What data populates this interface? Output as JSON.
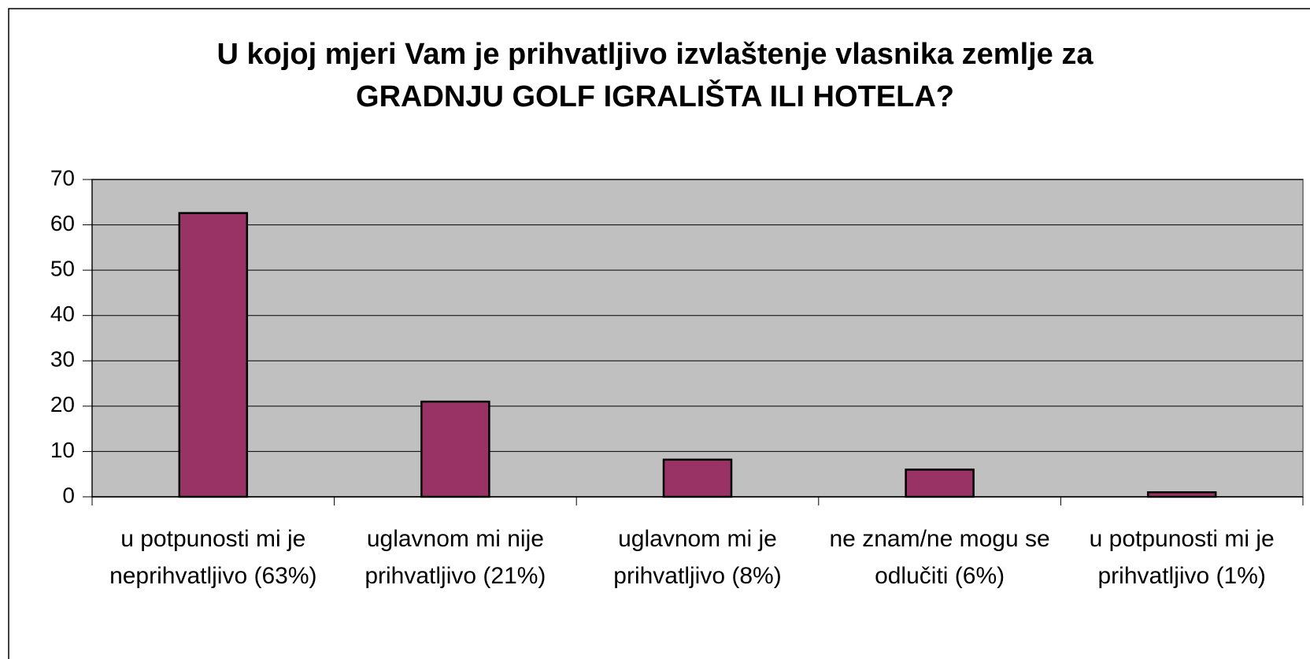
{
  "chart_data": {
    "type": "bar",
    "title": "U kojoj mjeri Vam je prihvatljivo izvlaštenje vlasnika zemlje za GRADNJU GOLF IGRALIŠTA ILI HOTELA?",
    "categories": [
      "u potpunosti mi je neprihvatljivo (63%)",
      "uglavnom mi nije prihvatljivo (21%)",
      "uglavnom mi je prihvatljivo (8%)",
      "ne znam/ne mogu se odlučiti (6%)",
      "u potpunosti mi je prihvatljivo (1%)"
    ],
    "values": [
      62.6,
      21,
      8.2,
      6,
      1
    ],
    "color": "#993366",
    "plot_background": "#c0c0c0",
    "ylim": [
      0,
      70
    ],
    "yticks": [
      0,
      10,
      20,
      30,
      40,
      50,
      60,
      70
    ],
    "grid": true
  }
}
